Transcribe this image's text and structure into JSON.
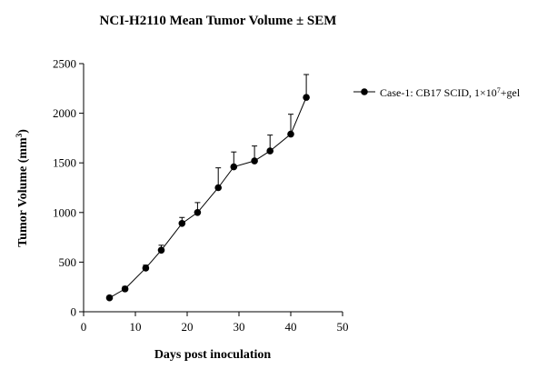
{
  "chart_data": {
    "type": "line",
    "title": "NCI-H2110 Mean Tumor Volume ± SEM",
    "xlabel": "Days post inoculation",
    "ylabel": "Tumor Volume (mm",
    "ylabel_sup": "3",
    "ylabel_end": ")",
    "xlim": [
      0,
      50
    ],
    "ylim": [
      0,
      2500
    ],
    "xticks": [
      "0",
      "10",
      "20",
      "30",
      "40",
      "50"
    ],
    "yticks": [
      "0",
      "500",
      "1000",
      "1500",
      "2000",
      "2500"
    ],
    "grid": false,
    "legend_position": "right",
    "series": [
      {
        "name": "Case-1: CB17 SCID, 1×10",
        "name_sup": "7",
        "name_end": "+gel",
        "color": "#000000",
        "marker": "circle",
        "x": [
          5,
          8,
          12,
          15,
          19,
          22,
          26,
          29,
          33,
          36,
          40,
          43
        ],
        "y": [
          140,
          230,
          440,
          620,
          890,
          1000,
          1250,
          1460,
          1520,
          1620,
          1790,
          2160
        ],
        "sem": [
          20,
          25,
          30,
          50,
          60,
          100,
          200,
          150,
          150,
          160,
          200,
          230
        ]
      }
    ]
  }
}
